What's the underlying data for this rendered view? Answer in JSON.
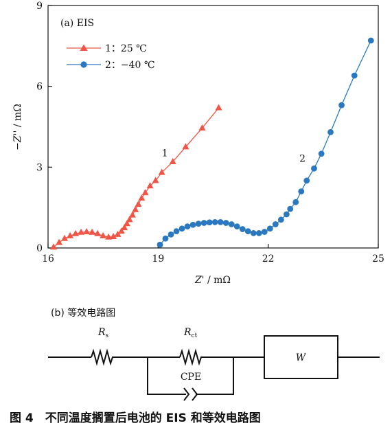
{
  "chart_data": {
    "type": "line",
    "title": "(a) EIS",
    "xlabel_main": "Z'",
    "xlabel_unit": " / mΩ",
    "ylabel_main": "−Z''",
    "ylabel_unit": " / mΩ",
    "xlim": [
      16,
      25
    ],
    "ylim": [
      0,
      9
    ],
    "xticks": [
      16,
      19,
      22,
      25
    ],
    "yticks": [
      0,
      3,
      6,
      9
    ],
    "grid": false,
    "legend_position": "top-left",
    "series": [
      {
        "name": "1：25 ℃",
        "label": "1",
        "label_at": [
          19.1,
          3.4
        ],
        "color": "#f05545",
        "marker": "triangle",
        "x": [
          16.15,
          16.3,
          16.45,
          16.6,
          16.75,
          16.9,
          17.05,
          17.2,
          17.35,
          17.5,
          17.65,
          17.78,
          17.9,
          18.0,
          18.08,
          18.15,
          18.22,
          18.3,
          18.38,
          18.46,
          18.55,
          18.65,
          18.78,
          18.93,
          19.1,
          19.4,
          19.75,
          20.2,
          20.65
        ],
        "y": [
          0.03,
          0.2,
          0.35,
          0.45,
          0.53,
          0.58,
          0.6,
          0.58,
          0.53,
          0.45,
          0.4,
          0.42,
          0.5,
          0.62,
          0.75,
          0.9,
          1.05,
          1.22,
          1.42,
          1.62,
          1.85,
          2.05,
          2.3,
          2.5,
          2.8,
          3.2,
          3.75,
          4.45,
          5.2
        ]
      },
      {
        "name": "2：−40 ℃",
        "label": "2",
        "label_at": [
          22.85,
          3.2
        ],
        "color": "#2a78c0",
        "marker": "circle",
        "x": [
          19.05,
          19.2,
          19.35,
          19.5,
          19.65,
          19.8,
          19.95,
          20.1,
          20.25,
          20.4,
          20.55,
          20.7,
          20.85,
          21.0,
          21.15,
          21.3,
          21.45,
          21.6,
          21.75,
          21.9,
          22.05,
          22.2,
          22.35,
          22.5,
          22.6,
          22.75,
          22.9,
          23.05,
          23.25,
          23.45,
          23.7,
          24.0,
          24.35,
          24.8
        ],
        "y": [
          0.12,
          0.35,
          0.5,
          0.62,
          0.72,
          0.8,
          0.86,
          0.9,
          0.93,
          0.95,
          0.96,
          0.96,
          0.93,
          0.88,
          0.8,
          0.7,
          0.62,
          0.55,
          0.55,
          0.6,
          0.72,
          0.88,
          1.05,
          1.25,
          1.45,
          1.7,
          2.1,
          2.5,
          2.95,
          3.5,
          4.3,
          5.3,
          6.4,
          7.7
        ]
      }
    ]
  },
  "circuit": {
    "title": "(b) 等效电路图",
    "rs_main": "R",
    "rs_sub": "s",
    "rct_main": "R",
    "rct_sub": "ct",
    "cpe_label": "CPE",
    "w_label": "W"
  },
  "caption": "图 4　不同温度搁置后电池的 EIS 和等效电路图"
}
